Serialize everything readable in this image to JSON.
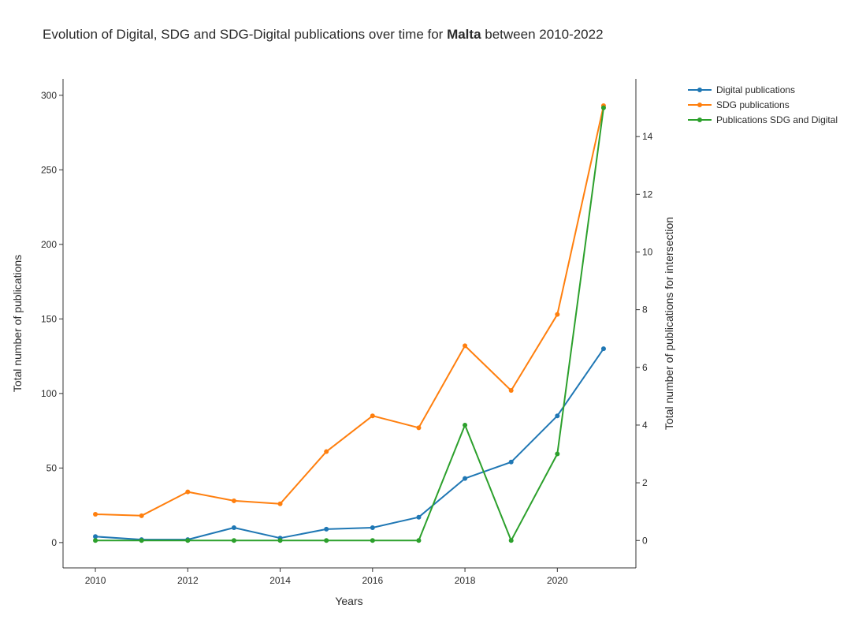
{
  "chart_data": {
    "type": "line",
    "title": {
      "prefix": "Evolution of Digital, SDG and SDG-Digital publications over time for ",
      "bold": "Malta",
      "suffix": " between 2010-2022"
    },
    "xlabel": "Years",
    "ylabel_left": "Total number of publications",
    "ylabel_right": "Total number of publications for intersection",
    "x": [
      2010,
      2011,
      2012,
      2013,
      2014,
      2015,
      2016,
      2017,
      2018,
      2019,
      2020,
      2021
    ],
    "xticks": [
      2010,
      2012,
      2014,
      2016,
      2018,
      2020
    ],
    "xlim": [
      2009.3,
      2021.7
    ],
    "ylim_left": [
      -17,
      311
    ],
    "yticks_left": [
      0,
      50,
      100,
      150,
      200,
      250,
      300
    ],
    "ylim_right": [
      -0.95,
      16
    ],
    "yticks_right": [
      0,
      2,
      4,
      6,
      8,
      10,
      12,
      14
    ],
    "series": [
      {
        "name": "Digital publications",
        "axis": "left",
        "color": "#1f77b4",
        "values": [
          4,
          2,
          2,
          10,
          3,
          9,
          10,
          17,
          43,
          54,
          85,
          130
        ]
      },
      {
        "name": "SDG publications",
        "axis": "left",
        "color": "#ff7f0e",
        "values": [
          19,
          18,
          34,
          28,
          26,
          61,
          85,
          77,
          132,
          102,
          153,
          293
        ]
      },
      {
        "name": "Publications SDG and Digital",
        "axis": "right",
        "color": "#2ca02c",
        "values": [
          0,
          0,
          0,
          0,
          0,
          0,
          0,
          0,
          4,
          0,
          3,
          15
        ]
      }
    ],
    "grid": false,
    "legend_position": "top-right"
  }
}
